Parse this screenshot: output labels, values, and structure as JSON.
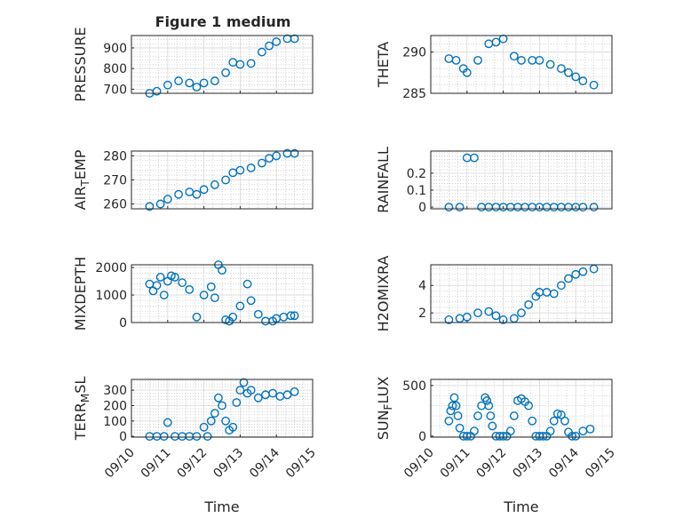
{
  "figure": {
    "title": "Figure 1 medium",
    "colors": {
      "marker": "#0072BD",
      "axis": "#262626",
      "grid": "#b8b8b8",
      "frame_fill": "#ffffff"
    }
  },
  "chart_data": [
    {
      "type": "scatter",
      "ylabel": "PRESSURE",
      "ylim": [
        680,
        960
      ],
      "yticks": [
        700,
        800,
        900
      ],
      "grid": "on (major + minor, dotted)",
      "x": [
        0.5,
        0.7,
        1.0,
        1.3,
        1.6,
        1.8,
        2.0,
        2.3,
        2.6,
        2.8,
        3.0,
        3.3,
        3.6,
        3.8,
        4.0,
        4.3,
        4.5
      ],
      "values": [
        680,
        690,
        720,
        740,
        730,
        710,
        730,
        740,
        780,
        830,
        820,
        825,
        880,
        910,
        930,
        945,
        945
      ],
      "x_date_labels": [],
      "xlabel": ""
    },
    {
      "type": "scatter",
      "ylabel": "THETA",
      "ylim": [
        285,
        292
      ],
      "yticks": [
        285,
        290
      ],
      "grid": "on (major + minor, dotted)",
      "x": [
        0.5,
        0.7,
        0.9,
        1.0,
        1.3,
        1.6,
        1.8,
        2.0,
        2.3,
        2.5,
        2.8,
        3.0,
        3.3,
        3.6,
        3.8,
        4.0,
        4.2,
        4.5
      ],
      "values": [
        289.2,
        289.0,
        288.0,
        287.5,
        289.0,
        291.0,
        291.2,
        291.6,
        289.5,
        289.0,
        289.0,
        289.0,
        288.5,
        288.0,
        287.5,
        287.0,
        286.5,
        286.0
      ],
      "x_date_labels": [],
      "xlabel": ""
    },
    {
      "type": "scatter",
      "ylabel": "AIR_TEMP",
      "ylim": [
        258,
        282
      ],
      "yticks": [
        260,
        270,
        280
      ],
      "grid": "on (major + minor, dotted)",
      "x": [
        0.5,
        0.8,
        1.0,
        1.3,
        1.6,
        1.8,
        2.0,
        2.3,
        2.6,
        2.8,
        3.0,
        3.3,
        3.6,
        3.8,
        4.0,
        4.3,
        4.5
      ],
      "values": [
        259,
        260,
        262,
        264,
        265,
        264,
        266,
        268,
        270,
        273,
        274,
        275,
        277,
        279,
        280,
        281,
        281
      ],
      "x_date_labels": [],
      "xlabel": ""
    },
    {
      "type": "scatter",
      "ylabel": "RAINFALL",
      "ylim": [
        -0.01,
        0.33
      ],
      "yticks": [
        0,
        0.1,
        0.2
      ],
      "grid": "on (major + minor, dotted)",
      "x": [
        0.5,
        0.8,
        1.0,
        1.2,
        1.4,
        1.6,
        1.8,
        2.0,
        2.2,
        2.4,
        2.6,
        2.8,
        3.0,
        3.2,
        3.4,
        3.6,
        3.8,
        4.0,
        4.2,
        4.5
      ],
      "values": [
        0,
        0,
        0.29,
        0.29,
        0,
        0,
        0,
        0,
        0,
        0,
        0,
        0,
        0,
        0,
        0,
        0,
        0,
        0,
        0,
        0
      ],
      "x_date_labels": [],
      "xlabel": ""
    },
    {
      "type": "scatter",
      "ylabel": "MIXDEPTH",
      "ylim": [
        0,
        2100
      ],
      "yticks": [
        0,
        1000,
        2000
      ],
      "grid": "on (major + minor, dotted)",
      "x": [
        0.5,
        0.6,
        0.7,
        0.8,
        0.9,
        1.0,
        1.1,
        1.2,
        1.4,
        1.6,
        1.8,
        2.0,
        2.2,
        2.3,
        2.4,
        2.5,
        2.6,
        2.7,
        2.8,
        3.0,
        3.2,
        3.3,
        3.5,
        3.7,
        3.9,
        4.0,
        4.2,
        4.4,
        4.5
      ],
      "values": [
        1400,
        1150,
        1350,
        1650,
        1000,
        1500,
        1700,
        1650,
        1450,
        1200,
        200,
        1000,
        1300,
        900,
        2100,
        1900,
        100,
        50,
        200,
        600,
        1400,
        800,
        300,
        50,
        50,
        150,
        200,
        250,
        250
      ],
      "x_date_labels": [],
      "xlabel": ""
    },
    {
      "type": "scatter",
      "ylabel": "H2OMIXRA",
      "ylim": [
        1.3,
        5.5
      ],
      "yticks": [
        2,
        4
      ],
      "grid": "on (major + minor, dotted)",
      "x": [
        0.5,
        0.8,
        1.0,
        1.3,
        1.6,
        1.8,
        2.0,
        2.3,
        2.5,
        2.7,
        2.9,
        3.0,
        3.2,
        3.4,
        3.6,
        3.8,
        4.0,
        4.2,
        4.5
      ],
      "values": [
        1.5,
        1.6,
        1.7,
        2.0,
        2.1,
        1.8,
        1.5,
        1.6,
        2.0,
        2.6,
        3.2,
        3.5,
        3.5,
        3.4,
        4.0,
        4.5,
        4.8,
        5.0,
        5.2
      ],
      "x_date_labels": [],
      "xlabel": ""
    },
    {
      "type": "scatter",
      "ylabel": "TERR_MSL",
      "ylim": [
        -5,
        370
      ],
      "yticks": [
        0,
        100,
        200,
        300
      ],
      "grid": "on (major + minor, dotted)",
      "x": [
        0.5,
        0.7,
        0.9,
        1.0,
        1.2,
        1.4,
        1.6,
        1.8,
        2.0,
        2.1,
        2.2,
        2.3,
        2.4,
        2.5,
        2.6,
        2.7,
        2.8,
        2.9,
        3.0,
        3.1,
        3.2,
        3.3,
        3.5,
        3.7,
        3.9,
        4.1,
        4.3,
        4.5
      ],
      "values": [
        0,
        0,
        0,
        90,
        0,
        0,
        0,
        0,
        60,
        0,
        100,
        150,
        250,
        200,
        100,
        40,
        60,
        220,
        300,
        350,
        280,
        300,
        250,
        270,
        280,
        260,
        270,
        290
      ],
      "x_date_labels": [
        "09/10",
        "09/11",
        "09/12",
        "09/13",
        "09/14",
        "09/15"
      ],
      "xlabel": "Time"
    },
    {
      "type": "scatter",
      "ylabel": "SUN_FLUX",
      "ylim": [
        -10,
        560
      ],
      "yticks": [
        0,
        500
      ],
      "grid": "on (major + minor, dotted)",
      "x": [
        0.5,
        0.55,
        0.6,
        0.65,
        0.7,
        0.75,
        0.8,
        0.9,
        1.0,
        1.1,
        1.2,
        1.3,
        1.4,
        1.5,
        1.55,
        1.6,
        1.65,
        1.7,
        1.8,
        1.9,
        2.0,
        2.1,
        2.2,
        2.3,
        2.4,
        2.5,
        2.6,
        2.7,
        2.8,
        2.9,
        3.0,
        3.1,
        3.2,
        3.3,
        3.4,
        3.5,
        3.6,
        3.7,
        3.8,
        3.9,
        4.0,
        4.2,
        4.4
      ],
      "values": [
        150,
        250,
        300,
        380,
        300,
        200,
        80,
        0,
        0,
        0,
        50,
        200,
        300,
        380,
        350,
        300,
        200,
        100,
        0,
        0,
        0,
        0,
        50,
        200,
        350,
        370,
        340,
        300,
        150,
        0,
        0,
        0,
        0,
        50,
        150,
        220,
        210,
        150,
        40,
        0,
        0,
        50,
        70
      ],
      "x_date_labels": [
        "09/10",
        "09/11",
        "09/12",
        "09/13",
        "09/14",
        "09/15"
      ],
      "xlabel": "Time"
    }
  ]
}
